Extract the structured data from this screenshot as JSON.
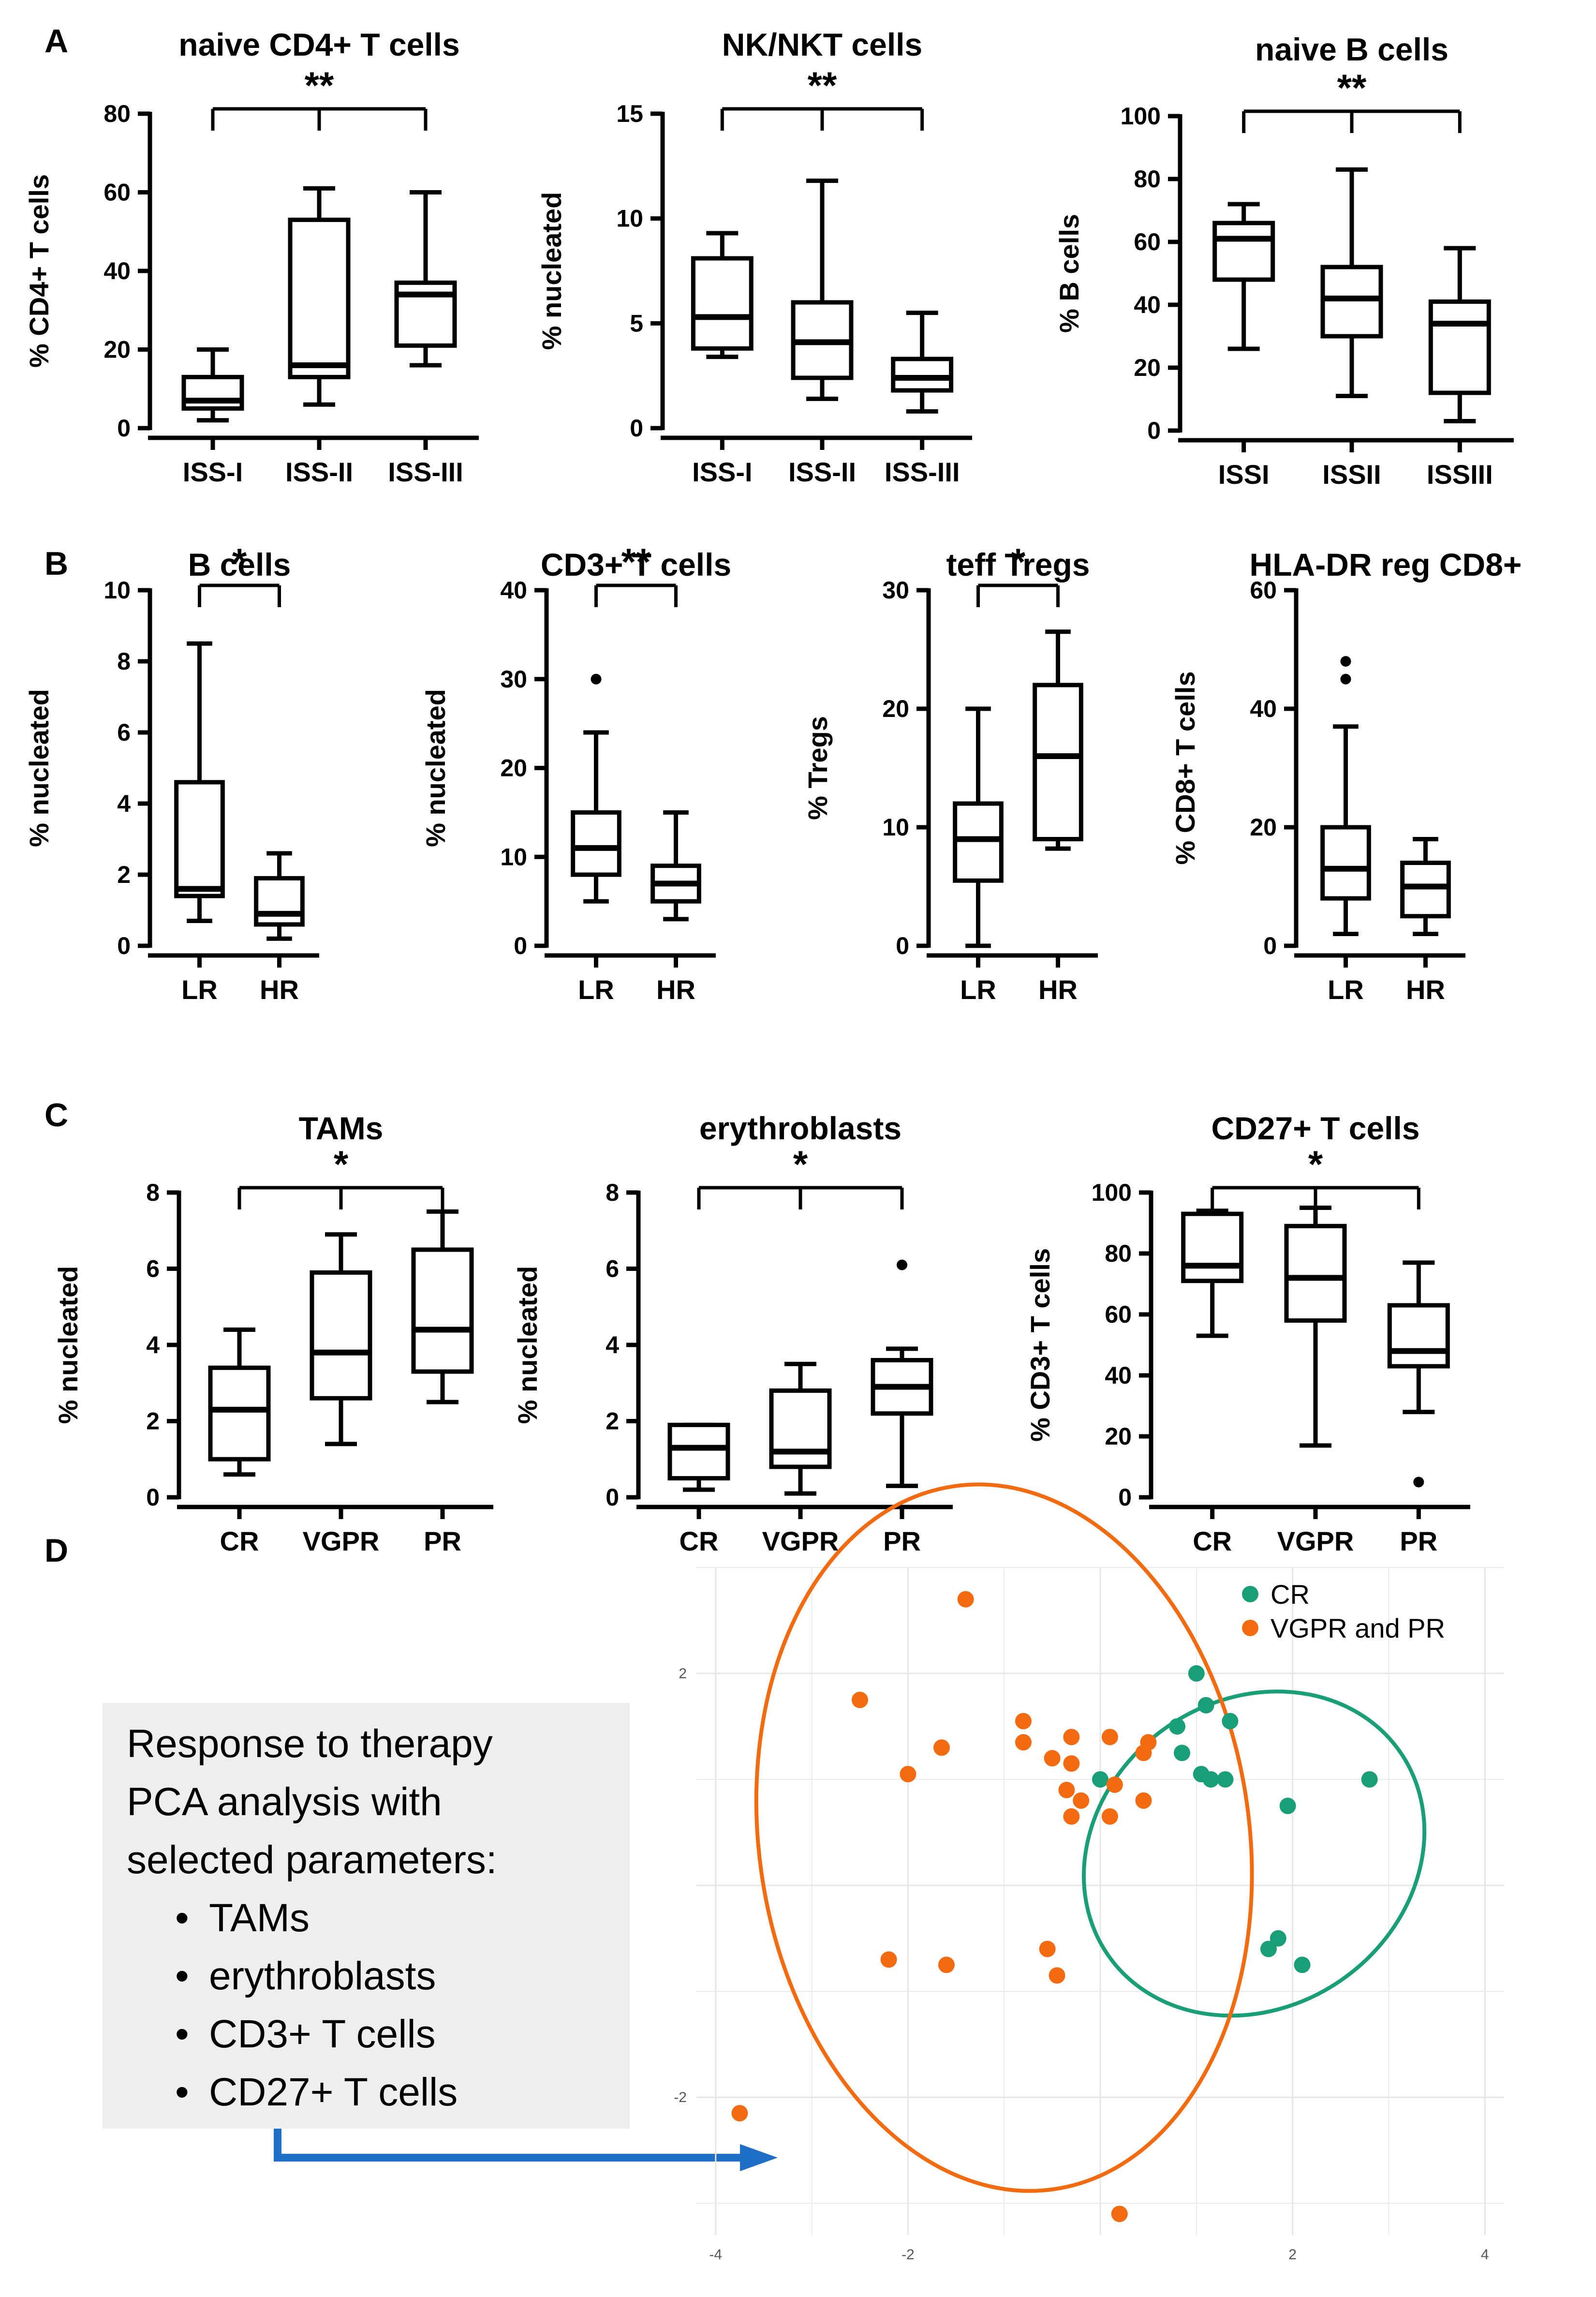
{
  "panels": [
    {
      "label": "A"
    },
    {
      "label": "B"
    },
    {
      "label": "C"
    },
    {
      "label": "D"
    }
  ],
  "chart_data": [
    {
      "type": "boxplot",
      "panel": "A",
      "title": "naive CD4+ T cells",
      "ylabel": "% CD4+ T cells",
      "ylim": [
        0,
        80
      ],
      "yticks": [
        0,
        20,
        40,
        60,
        80
      ],
      "categories": [
        "ISS-I",
        "ISS-II",
        "ISS-III"
      ],
      "boxes": [
        {
          "min": 2,
          "q1": 5,
          "median": 7,
          "q3": 13,
          "max": 20
        },
        {
          "min": 6,
          "q1": 13,
          "median": 16,
          "q3": 53,
          "max": 61
        },
        {
          "min": 16,
          "q1": 21,
          "median": 34,
          "q3": 37,
          "max": 60
        }
      ],
      "outliers": [],
      "significance": {
        "label": "**",
        "from": 0,
        "to": 2
      }
    },
    {
      "type": "boxplot",
      "panel": "A",
      "title": "NK/NKT cells",
      "ylabel": "% nucleated",
      "ylim": [
        0,
        15
      ],
      "yticks": [
        0,
        5,
        10,
        15
      ],
      "categories": [
        "ISS-I",
        "ISS-II",
        "ISS-III"
      ],
      "boxes": [
        {
          "min": 3.4,
          "q1": 3.8,
          "median": 5.3,
          "q3": 8.1,
          "max": 9.3
        },
        {
          "min": 1.4,
          "q1": 2.4,
          "median": 4.1,
          "q3": 6,
          "max": 11.8
        },
        {
          "min": 0.8,
          "q1": 1.8,
          "median": 2.4,
          "q3": 3.3,
          "max": 5.5
        }
      ],
      "outliers": [],
      "significance": {
        "label": "**",
        "from": 0,
        "to": 2
      }
    },
    {
      "type": "boxplot",
      "panel": "A",
      "title": "naive B cells",
      "ylabel": "% B cells",
      "ylim": [
        0,
        100
      ],
      "yticks": [
        0,
        20,
        40,
        60,
        80,
        100
      ],
      "categories": [
        "ISSI",
        "ISSII",
        "ISSIII"
      ],
      "boxes": [
        {
          "min": 26,
          "q1": 48,
          "median": 61,
          "q3": 66,
          "max": 72
        },
        {
          "min": 11,
          "q1": 30,
          "median": 42,
          "q3": 52,
          "max": 83
        },
        {
          "min": 3,
          "q1": 12,
          "median": 34,
          "q3": 41,
          "max": 58
        }
      ],
      "outliers": [],
      "significance": {
        "label": "**",
        "from": 0,
        "to": 2
      }
    },
    {
      "type": "boxplot",
      "panel": "B",
      "title": "B cells",
      "ylabel": "% nucleated",
      "ylim": [
        0,
        10
      ],
      "yticks": [
        0,
        2,
        4,
        6,
        8,
        10
      ],
      "categories": [
        "LR",
        "HR"
      ],
      "boxes": [
        {
          "min": 0.7,
          "q1": 1.4,
          "median": 1.6,
          "q3": 4.6,
          "max": 8.5
        },
        {
          "min": 0.2,
          "q1": 0.6,
          "median": 0.9,
          "q3": 1.9,
          "max": 2.6
        }
      ],
      "outliers": [],
      "significance": {
        "label": "*",
        "from": 0,
        "to": 1
      }
    },
    {
      "type": "boxplot",
      "panel": "B",
      "title": "CD3+ T cells",
      "ylabel": "% nucleated",
      "ylim": [
        0,
        40
      ],
      "yticks": [
        0,
        10,
        20,
        30,
        40
      ],
      "categories": [
        "LR",
        "HR"
      ],
      "boxes": [
        {
          "min": 5,
          "q1": 8,
          "median": 11,
          "q3": 15,
          "max": 24
        },
        {
          "min": 3,
          "q1": 5,
          "median": 7,
          "q3": 9,
          "max": 15
        }
      ],
      "outliers": [
        {
          "box": 0,
          "value": 30
        }
      ],
      "significance": {
        "label": "**",
        "from": 0,
        "to": 1
      }
    },
    {
      "type": "boxplot",
      "panel": "B",
      "title": "teff Tregs",
      "ylabel": "% Tregs",
      "ylim": [
        0,
        30
      ],
      "yticks": [
        0,
        10,
        20,
        30
      ],
      "categories": [
        "LR",
        "HR"
      ],
      "boxes": [
        {
          "min": 0,
          "q1": 5.5,
          "median": 9,
          "q3": 12,
          "max": 20
        },
        {
          "min": 8.2,
          "q1": 9,
          "median": 16,
          "q3": 22,
          "max": 26.5
        }
      ],
      "outliers": [],
      "significance": {
        "label": "*",
        "from": 0,
        "to": 1
      }
    },
    {
      "type": "boxplot",
      "panel": "B",
      "title": "HLA-DR reg CD8+",
      "ylabel": "% CD8+ T cells",
      "ylim": [
        0,
        60
      ],
      "yticks": [
        0,
        20,
        40,
        60
      ],
      "categories": [
        "LR",
        "HR"
      ],
      "boxes": [
        {
          "min": 2,
          "q1": 8,
          "median": 13,
          "q3": 20,
          "max": 37
        },
        {
          "min": 2,
          "q1": 5,
          "median": 10,
          "q3": 14,
          "max": 18
        }
      ],
      "outliers": [
        {
          "box": 0,
          "value": 45
        },
        {
          "box": 0,
          "value": 48
        }
      ],
      "significance": null
    },
    {
      "type": "boxplot",
      "panel": "C",
      "title": "TAMs",
      "ylabel": "% nucleated",
      "ylim": [
        0,
        8
      ],
      "yticks": [
        0,
        2,
        4,
        6,
        8
      ],
      "categories": [
        "CR",
        "VGPR",
        "PR"
      ],
      "boxes": [
        {
          "min": 0.6,
          "q1": 1,
          "median": 2.3,
          "q3": 3.4,
          "max": 4.4
        },
        {
          "min": 1.4,
          "q1": 2.6,
          "median": 3.8,
          "q3": 5.9,
          "max": 6.9
        },
        {
          "min": 2.5,
          "q1": 3.3,
          "median": 4.4,
          "q3": 6.5,
          "max": 7.5
        }
      ],
      "outliers": [],
      "significance": {
        "label": "*",
        "from": 0,
        "to": 2
      }
    },
    {
      "type": "boxplot",
      "panel": "C",
      "title": "erythroblasts",
      "ylabel": "% nucleated",
      "ylim": [
        0,
        8
      ],
      "yticks": [
        0,
        2,
        4,
        6,
        8
      ],
      "categories": [
        "CR",
        "VGPR",
        "PR"
      ],
      "boxes": [
        {
          "min": 0.2,
          "q1": 0.5,
          "median": 1.3,
          "q3": 1.9,
          "max": 1.9
        },
        {
          "min": 0.1,
          "q1": 0.8,
          "median": 1.2,
          "q3": 2.8,
          "max": 3.5
        },
        {
          "min": 0.3,
          "q1": 2.2,
          "median": 2.9,
          "q3": 3.6,
          "max": 3.9
        }
      ],
      "outliers": [
        {
          "box": 2,
          "value": 6.1
        }
      ],
      "significance": {
        "label": "*",
        "from": 0,
        "to": 2
      }
    },
    {
      "type": "boxplot",
      "panel": "C",
      "title": "CD27+ T cells",
      "ylabel": "% CD3+ T cells",
      "ylim": [
        0,
        100
      ],
      "yticks": [
        0,
        20,
        40,
        60,
        80,
        100
      ],
      "categories": [
        "CR",
        "VGPR",
        "PR"
      ],
      "boxes": [
        {
          "min": 53,
          "q1": 71,
          "median": 76,
          "q3": 93,
          "max": 94
        },
        {
          "min": 17,
          "q1": 58,
          "median": 72,
          "q3": 89,
          "max": 95
        },
        {
          "min": 28,
          "q1": 43,
          "median": 48,
          "q3": 63,
          "max": 77
        }
      ],
      "outliers": [
        {
          "box": 2,
          "value": 5
        }
      ],
      "significance": {
        "label": "*",
        "from": 0,
        "to": 2
      }
    },
    {
      "type": "scatter",
      "panel": "D",
      "title": "",
      "xlabel": "",
      "ylabel": "",
      "xlim": [
        -4.2,
        4.2
      ],
      "ylim": [
        -3.3,
        3.0
      ],
      "xticks": [
        -4,
        -2,
        0,
        2,
        4
      ],
      "yticks": [
        -2,
        0,
        2
      ],
      "ytick_labels": [
        "-2",
        "",
        "2"
      ],
      "xtick_labels": [
        "-4",
        "-2",
        "",
        "2",
        "4"
      ],
      "series": [
        {
          "name": "CR",
          "color": "#1a9e77",
          "points": [
            [
              1.0,
              2.0
            ],
            [
              1.1,
              1.7
            ],
            [
              0.8,
              1.5
            ],
            [
              1.35,
              1.55
            ],
            [
              0.0,
              1.0
            ],
            [
              0.85,
              1.25
            ],
            [
              1.05,
              1.05
            ],
            [
              1.15,
              1.0
            ],
            [
              1.3,
              1.0
            ],
            [
              2.8,
              1.0
            ],
            [
              1.95,
              0.75
            ],
            [
              1.85,
              -0.5
            ],
            [
              1.75,
              -0.6
            ],
            [
              2.1,
              -0.75
            ]
          ]
        },
        {
          "name": "VGPR and PR",
          "color": "#f26b11",
          "points": [
            [
              -1.4,
              2.7
            ],
            [
              -2.5,
              1.75
            ],
            [
              -0.8,
              1.55
            ],
            [
              -0.3,
              1.4
            ],
            [
              0.1,
              1.4
            ],
            [
              -0.8,
              1.35
            ],
            [
              -1.65,
              1.3
            ],
            [
              0.45,
              1.25
            ],
            [
              0.5,
              1.35
            ],
            [
              -0.5,
              1.2
            ],
            [
              -0.3,
              1.15
            ],
            [
              -2.0,
              1.05
            ],
            [
              -0.35,
              0.9
            ],
            [
              0.15,
              0.95
            ],
            [
              -0.2,
              0.8
            ],
            [
              0.45,
              0.8
            ],
            [
              -0.3,
              0.65
            ],
            [
              0.1,
              0.65
            ],
            [
              -0.55,
              -0.6
            ],
            [
              -2.2,
              -0.7
            ],
            [
              -1.6,
              -0.75
            ],
            [
              -0.45,
              -0.85
            ],
            [
              -3.75,
              -2.15
            ],
            [
              0.2,
              -3.1
            ]
          ]
        }
      ],
      "ellipses": [
        {
          "series": "CR",
          "cx": 1.6,
          "cy": 0.3,
          "rx": 1.85,
          "ry": 1.45,
          "angle_deg": -35
        },
        {
          "series": "VGPR and PR",
          "cx": -1.0,
          "cy": 0.45,
          "rx": 2.55,
          "ry": 3.35,
          "angle_deg": -8
        }
      ],
      "legend": {
        "position": "top-right",
        "entries": [
          "CR",
          "VGPR and PR"
        ]
      }
    }
  ],
  "pca_box": {
    "lines": [
      "Response to therapy",
      "PCA analysis with",
      "selected parameters:"
    ],
    "bullets": [
      "TAMs",
      "erythroblasts",
      "CD3+ T cells",
      "CD27+ T cells"
    ],
    "bullet_symbol": "•"
  },
  "colors": {
    "cr": "#1a9e77",
    "vgpr_pr": "#f26b11",
    "arrow": "#1f6fc7",
    "box_bg": "#eeeeee"
  }
}
